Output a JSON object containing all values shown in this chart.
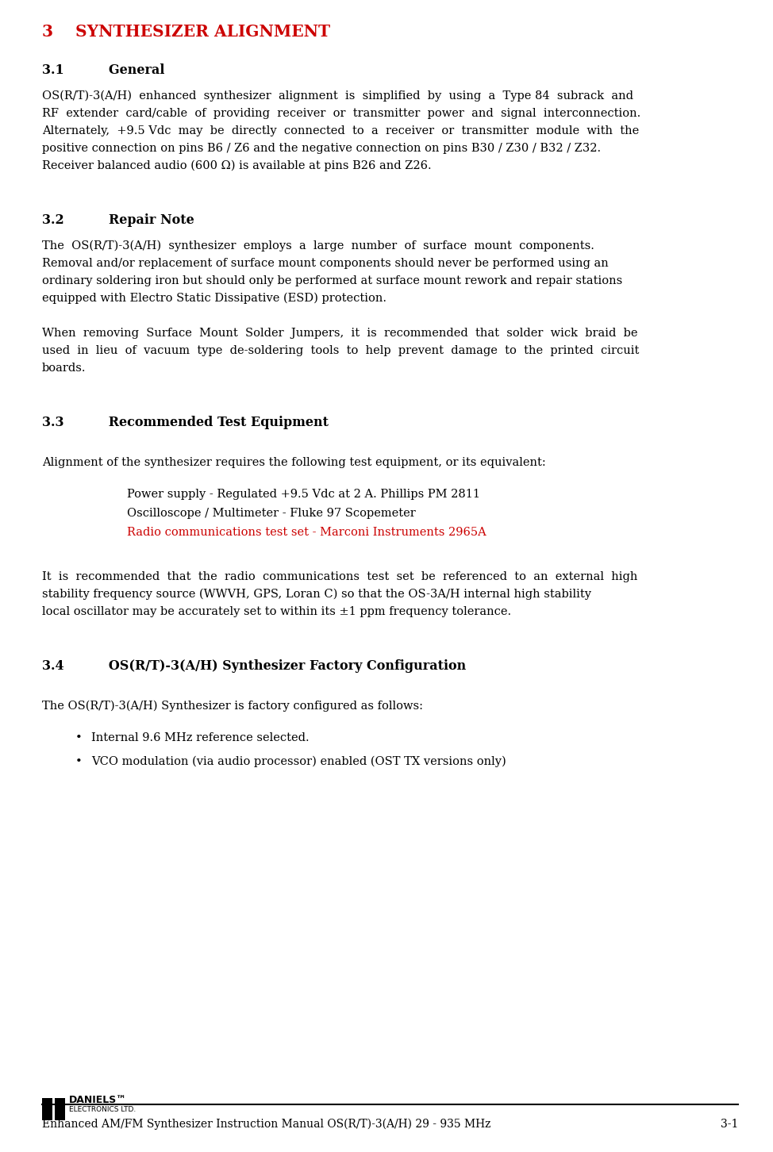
{
  "title": "3    SYNTHESIZER ALIGNMENT",
  "title_color": "#cc0000",
  "bg_color": "#ffffff",
  "text_color": "#000000",
  "footer_text": "Enhanced AM/FM Synthesizer Instruction Manual OS(R/T)-3(A/H) 29 - 935 MHz",
  "footer_page": "3-1",
  "section31_heading": "3.1          General",
  "section31_body": "OS(R/T)-3(A/H)  enhanced  synthesizer  alignment  is  simplified  by  using  a  Type 84  subrack  and\nRF  extender  card/cable  of  providing  receiver  or  transmitter  power  and  signal  interconnection.\nAlternately,  +9.5 Vdc  may  be  directly  connected  to  a  receiver  or  transmitter  module  with  the\npositive connection on pins B6 / Z6 and the negative connection on pins B30 / Z30 / B32 / Z32.\nReceiver balanced audio (600 Ω) is available at pins B26 and Z26.",
  "section32_heading": "3.2          Repair Note",
  "section32_body1": "The  OS(R/T)-3(A/H)  synthesizer  employs  a  large  number  of  surface  mount  components.\nRemoval and/or replacement of surface mount components should never be performed using an\nordinary soldering iron but should only be performed at surface mount rework and repair stations\nequipped with Electro Static Dissipative (ESD) protection.",
  "section32_body2": "When  removing  Surface  Mount  Solder  Jumpers,  it  is  recommended  that  solder  wick  braid  be\nused  in  lieu  of  vacuum  type  de-soldering  tools  to  help  prevent  damage  to  the  printed  circuit\nboards.",
  "section33_heading": "3.3          Recommended Test Equipment",
  "section33_intro": "Alignment of the synthesizer requires the following test equipment, or its equivalent:",
  "section33_items": [
    {
      "text": "Power supply - Regulated +9.5 Vdc at 2 A. Phillips PM 2811",
      "color": "#000000"
    },
    {
      "text": "Oscilloscope / Multimeter - Fluke 97 Scopemeter",
      "color": "#000000"
    },
    {
      "text": "Radio communications test set - Marconi Instruments 2965A",
      "color": "#cc0000"
    }
  ],
  "section33_body2": "It  is  recommended  that  the  radio  communications  test  set  be  referenced  to  an  external  high\nstability frequency source (WWVH, GPS, Loran C) so that the OS-3A/H internal high stability\nlocal oscillator may be accurately set to within its ±1 ppm frequency tolerance.",
  "section34_heading": "3.4          OS(R/T)-3(A/H) Synthesizer Factory Configuration",
  "section34_intro": "The OS(R/T)-3(A/H) Synthesizer is factory configured as follows:",
  "section34_bullets": [
    "Internal 9.6 MHz reference selected.",
    "VCO modulation (via audio processor) enabled (OST TX versions only)"
  ],
  "logo_daniels": "DANIELS™",
  "logo_sub": "ELECTRONICS LTD."
}
